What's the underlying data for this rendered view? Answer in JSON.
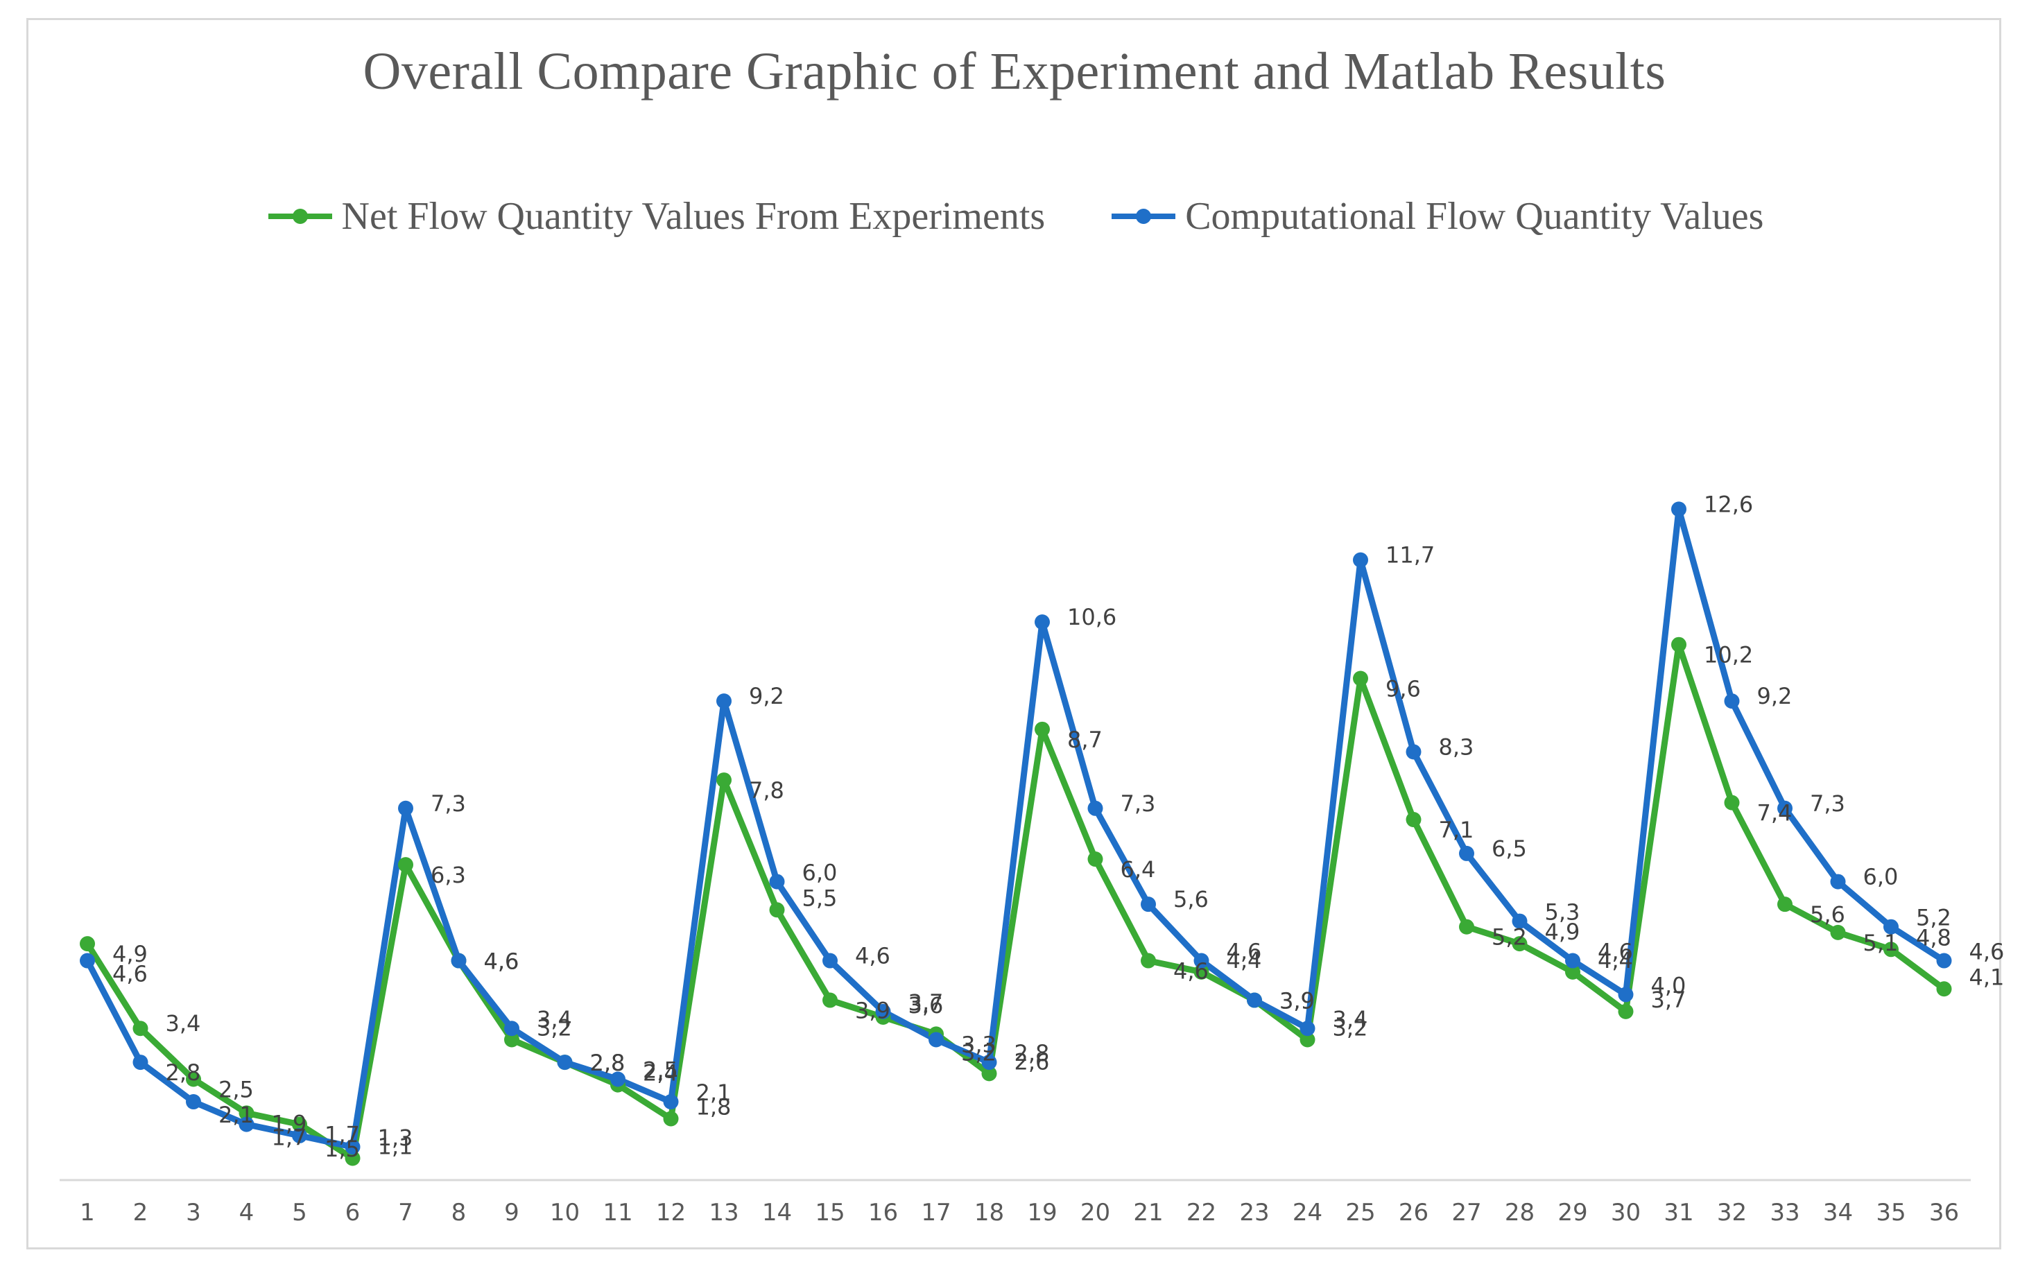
{
  "chart_data": {
    "type": "line",
    "title": "Overall Compare Graphic of Experiment and Matlab Results",
    "xlabel": "",
    "ylabel": "",
    "ylim": [
      0,
      14
    ],
    "grid": false,
    "legend_position": "top",
    "categories": [
      "1",
      "2",
      "3",
      "4",
      "5",
      "6",
      "7",
      "8",
      "9",
      "10",
      "11",
      "12",
      "13",
      "14",
      "15",
      "16",
      "17",
      "18",
      "19",
      "20",
      "21",
      "22",
      "23",
      "24",
      "25",
      "26",
      "27",
      "28",
      "29",
      "30",
      "31",
      "32",
      "33",
      "34",
      "35",
      "36"
    ],
    "series": [
      {
        "name": "Net Flow Quantity Values From Experiments",
        "color": "#3aaa35",
        "values": [
          4.9,
          3.4,
          2.5,
          1.9,
          1.7,
          1.1,
          6.3,
          4.6,
          3.2,
          2.8,
          2.4,
          1.8,
          7.8,
          5.5,
          3.9,
          3.6,
          3.3,
          2.6,
          8.7,
          6.4,
          4.6,
          4.4,
          3.9,
          3.2,
          9.6,
          7.1,
          5.2,
          4.9,
          4.4,
          3.7,
          10.2,
          7.4,
          5.6,
          5.1,
          4.8,
          4.1
        ],
        "labels": [
          "4,9",
          "3,4",
          "2,5",
          "1,9",
          "1,7",
          "1,1",
          "6,3",
          "4,6",
          "3,2",
          "2,8",
          "2,4",
          "1,8",
          "7,8",
          "5,5",
          "3,9",
          "3,6",
          "3,3",
          "2,6",
          "8,7",
          "6,4",
          "4,6",
          "4,4",
          "3,9",
          "3,2",
          "9,6",
          "7,1",
          "5,2",
          "4,9",
          "4,4",
          "3,7",
          "10,2",
          "7,4",
          "5,6",
          "5,1",
          "4,8",
          "4,1"
        ]
      },
      {
        "name": "Computational Flow Quantity Values",
        "color": "#1f6fc8",
        "values": [
          4.6,
          2.8,
          2.1,
          1.7,
          1.5,
          1.3,
          7.3,
          4.6,
          3.4,
          2.8,
          2.5,
          2.1,
          9.2,
          6.0,
          4.6,
          3.7,
          3.2,
          2.8,
          10.6,
          7.3,
          5.6,
          4.6,
          3.9,
          3.4,
          11.7,
          8.3,
          6.5,
          5.3,
          4.6,
          4.0,
          12.6,
          9.2,
          7.3,
          6.0,
          5.2,
          4.6
        ],
        "labels": [
          "4,6",
          "2,8",
          "2,1",
          "1,7",
          "1,5",
          "1,3",
          "7,3",
          "4,6",
          "3,4",
          "2,8",
          "2,5",
          "2,1",
          "9,2",
          "6,0",
          "4,6",
          "3,7",
          "3,2",
          "2,8",
          "10,6",
          "7,3",
          "5,6",
          "4,6",
          "3,9",
          "3,4",
          "11,7",
          "8,3",
          "6,5",
          "5,3",
          "4,6",
          "4,0",
          "12,6",
          "9,2",
          "7,3",
          "6,0",
          "5,2",
          "4,6"
        ]
      }
    ]
  }
}
